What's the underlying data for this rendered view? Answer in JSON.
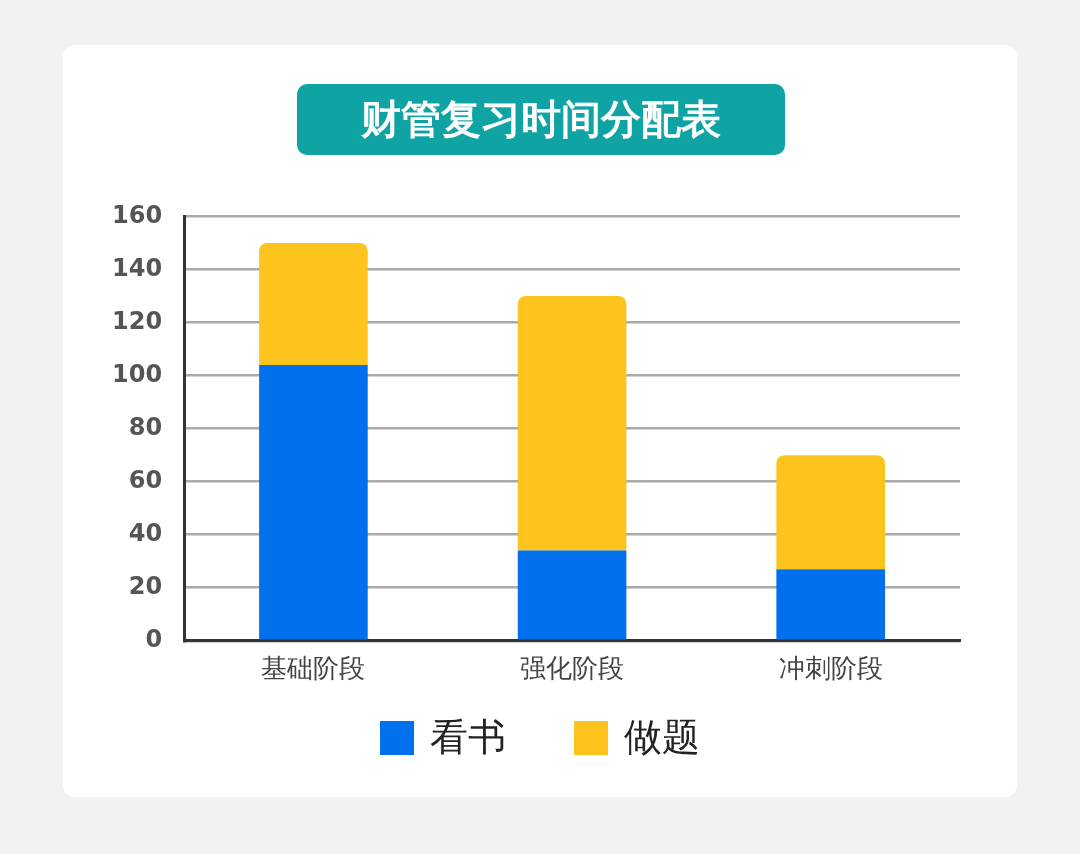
{
  "chart_data": {
    "type": "bar",
    "title": "财管复习时间分配表",
    "categories": [
      "基础阶段",
      "强化阶段",
      "冲刺阶段"
    ],
    "stacked": true,
    "series": [
      {
        "name": "看书",
        "color": "#0070ed",
        "values": [
          104,
          34,
          27
        ]
      },
      {
        "name": "做题",
        "color": "#fcc41c",
        "values": [
          46,
          96,
          43
        ]
      }
    ],
    "ylim": [
      0,
      160
    ],
    "yticks": [
      0,
      20,
      40,
      60,
      80,
      100,
      120,
      140,
      160
    ],
    "grid": "y",
    "legend": "bottom"
  }
}
